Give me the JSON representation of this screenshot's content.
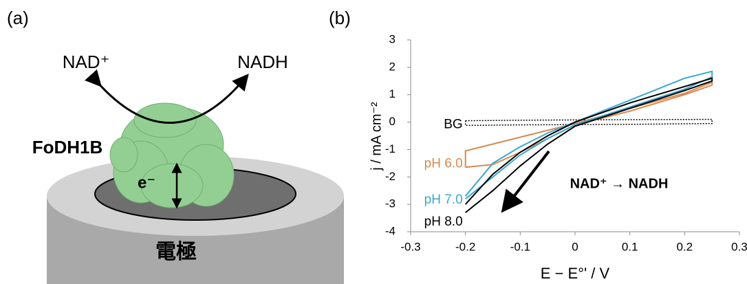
{
  "panel_a": {
    "label": "(a)",
    "substrate": "NAD⁺",
    "product": "NADH",
    "enzyme": "FoDH1B",
    "electron": "e⁻",
    "electrode": "電極"
  },
  "panel_b": {
    "label": "(b)"
  },
  "chart_data": {
    "type": "line",
    "x_label": "E − E°' / V",
    "y_label": "j / mA cm⁻²",
    "annotation": "NAD⁺ → NADH",
    "xlim": [
      -0.3,
      0.3
    ],
    "xticks": [
      -0.3,
      -0.2,
      -0.1,
      0,
      0.1,
      0.2,
      0.3
    ],
    "ylim": [
      -4,
      3
    ],
    "yticks": [
      -4,
      -3,
      -2,
      -1,
      0,
      1,
      2,
      3
    ],
    "series": [
      {
        "name": "BG",
        "color": "#000000",
        "line_style": "dotted",
        "x": [
          -0.2,
          -0.1,
          0,
          0.1,
          0.25,
          0.25,
          0.1,
          0,
          -0.1,
          -0.2,
          -0.2
        ],
        "values": [
          0.05,
          0.07,
          0.08,
          0.09,
          0.1,
          -0.05,
          -0.08,
          -0.09,
          -0.1,
          -0.12,
          0.05
        ]
      },
      {
        "name": "pH 6.0",
        "color": "#d9894f",
        "line_style": "solid",
        "x": [
          -0.2,
          -0.15,
          -0.1,
          -0.05,
          0,
          0.1,
          0.2,
          0.25,
          0.25,
          0.2,
          0.1,
          0,
          -0.05,
          -0.1,
          -0.15,
          -0.2,
          -0.2
        ],
        "values": [
          -1.65,
          -1.55,
          -1.1,
          -0.6,
          -0.1,
          0.4,
          1.0,
          1.35,
          1.45,
          1.05,
          0.5,
          -0.05,
          -0.3,
          -0.55,
          -0.8,
          -1.05,
          -1.65
        ]
      },
      {
        "name": "pH 7.0",
        "color": "#3aa6d0",
        "line_style": "solid",
        "x": [
          -0.2,
          -0.15,
          -0.1,
          -0.05,
          0,
          0.1,
          0.2,
          0.25,
          0.25,
          0.2,
          0.1,
          0,
          -0.05,
          -0.1,
          -0.15,
          -0.2
        ],
        "values": [
          -2.8,
          -2.0,
          -1.2,
          -0.6,
          -0.1,
          0.55,
          1.2,
          1.65,
          1.85,
          1.6,
          0.8,
          0,
          -0.4,
          -0.9,
          -1.5,
          -2.7
        ]
      },
      {
        "name": "pH 8.0",
        "color": "#000000",
        "line_style": "solid",
        "x": [
          -0.2,
          -0.15,
          -0.1,
          -0.05,
          0,
          0.1,
          0.2,
          0.25,
          0.25,
          0.2,
          0.1,
          0,
          -0.05,
          -0.1,
          -0.15,
          -0.2
        ],
        "values": [
          -3.3,
          -2.5,
          -1.6,
          -0.8,
          -0.15,
          0.5,
          1.15,
          1.5,
          1.6,
          1.3,
          0.7,
          0,
          -0.5,
          -1.1,
          -1.9,
          -3.0
        ]
      }
    ]
  }
}
